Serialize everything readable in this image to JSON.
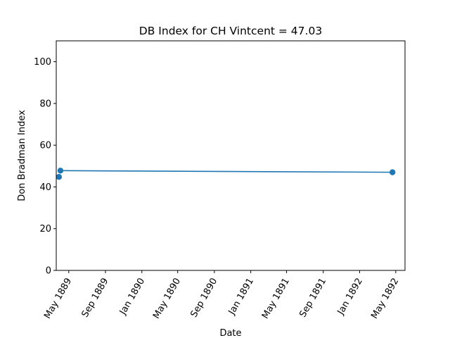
{
  "chart_data": {
    "type": "line",
    "title": "DB Index for CH Vintcent = 47.03",
    "xlabel": "Date",
    "ylabel": "Don Bradman Index",
    "ylim": [
      0,
      110
    ],
    "yticks": [
      0,
      20,
      40,
      60,
      80,
      100
    ],
    "xlim": [
      "1889-03-20",
      "1892-06-01"
    ],
    "xticks": [
      {
        "date": "1889-05-01",
        "label": "May 1889"
      },
      {
        "date": "1889-09-01",
        "label": "Sep 1889"
      },
      {
        "date": "1890-01-01",
        "label": "Jan 1890"
      },
      {
        "date": "1890-05-01",
        "label": "May 1890"
      },
      {
        "date": "1890-09-01",
        "label": "Sep 1890"
      },
      {
        "date": "1891-01-01",
        "label": "Jan 1891"
      },
      {
        "date": "1891-05-01",
        "label": "May 1891"
      },
      {
        "date": "1891-09-01",
        "label": "Sep 1891"
      },
      {
        "date": "1892-01-01",
        "label": "Jan 1892"
      },
      {
        "date": "1892-05-01",
        "label": "May 1892"
      }
    ],
    "grid": false,
    "series": [
      {
        "color": "#1f77b4",
        "points": [
          {
            "x": "1889-03-29",
            "y": 44.8
          },
          {
            "x": "1889-04-03",
            "y": 47.8
          },
          {
            "x": "1892-04-20",
            "y": 47.03
          }
        ]
      }
    ]
  }
}
